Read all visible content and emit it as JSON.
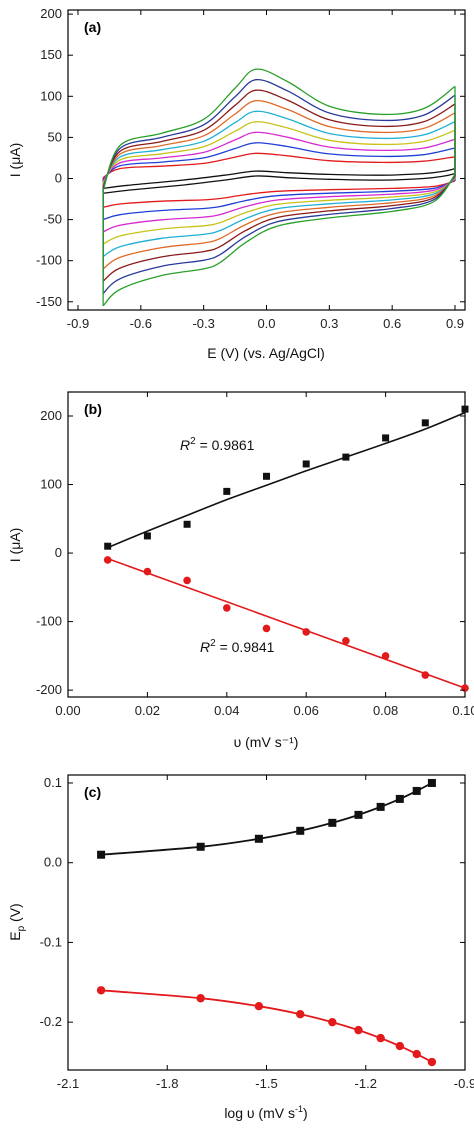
{
  "chart_data": [
    {
      "panel": "(a)",
      "type": "line",
      "xlabel": "E (V) (vs. Ag/AgCl)",
      "ylabel": "I (μA)",
      "xlim": [
        -0.9,
        0.9
      ],
      "ylim": [
        -160,
        205
      ],
      "xticks": [
        -0.9,
        -0.6,
        -0.3,
        0.0,
        0.3,
        0.6,
        0.9
      ],
      "xtick_labels": [
        "-0.9",
        "-0.6",
        "-0.3",
        "0.0",
        "0.3",
        "0.6",
        "0.9"
      ],
      "yticks": [
        -150,
        -100,
        -50,
        0,
        50,
        100,
        150,
        200
      ],
      "ytick_labels": [
        "-150",
        "-100",
        "-50",
        "0",
        "50",
        "100",
        "150",
        "200"
      ],
      "scan_scale": [
        0.1,
        0.2,
        0.3,
        0.4,
        0.5,
        0.6,
        0.7,
        0.8,
        0.9,
        1.0
      ],
      "colors": [
        "#111111",
        "#e31a1c",
        "#1f3fd6",
        "#d62ad0",
        "#c8c21a",
        "#1fb0d4",
        "#e06a28",
        "#8a1a1a",
        "#2a3a9a",
        "#2aa02a"
      ],
      "series": [
        {
          "values": [
            [
              -0.78,
              -12
            ],
            [
              -0.65,
              -8
            ],
            [
              -0.4,
              -2
            ],
            [
              -0.2,
              4
            ],
            [
              -0.05,
              9
            ],
            [
              0.1,
              7
            ],
            [
              0.3,
              5
            ],
            [
              0.55,
              4
            ],
            [
              0.75,
              6
            ],
            [
              0.85,
              9
            ],
            [
              0.9,
              12
            ]
          ]
        },
        {
          "values": [
            [
              -0.78,
              -155
            ],
            [
              -0.7,
              -135
            ],
            [
              -0.5,
              -118
            ],
            [
              -0.3,
              -110
            ],
            [
              -0.22,
              -102
            ],
            [
              -0.1,
              -78
            ],
            [
              0.05,
              -58
            ],
            [
              0.3,
              -48
            ],
            [
              0.6,
              -40
            ],
            [
              0.8,
              -28
            ],
            [
              0.9,
              5
            ]
          ]
        },
        {
          "values": [
            [
              -0.78,
              -15
            ],
            [
              -0.7,
              40
            ],
            [
              -0.5,
              55
            ],
            [
              -0.3,
              72
            ],
            [
              -0.15,
              110
            ],
            [
              -0.05,
              133
            ],
            [
              0.1,
              118
            ],
            [
              0.3,
              88
            ],
            [
              0.55,
              78
            ],
            [
              0.75,
              85
            ],
            [
              0.9,
              112
            ]
          ]
        }
      ]
    },
    {
      "panel": "(b)",
      "type": "scatter",
      "xlabel": "υ (mV s⁻¹)",
      "ylabel": "I (μA)",
      "xlim": [
        0.0,
        0.1
      ],
      "ylim": [
        -210,
        235
      ],
      "xticks": [
        0.0,
        0.02,
        0.04,
        0.06,
        0.08,
        0.1
      ],
      "xtick_labels": [
        "0.00",
        "0.02",
        "0.04",
        "0.06",
        "0.08",
        "0.10"
      ],
      "yticks": [
        -200,
        -100,
        0,
        100,
        200
      ],
      "ytick_labels": [
        "-200",
        "-100",
        "0",
        "100",
        "200"
      ],
      "x": [
        0.01,
        0.02,
        0.03,
        0.04,
        0.05,
        0.06,
        0.07,
        0.08,
        0.09,
        0.1
      ],
      "series": [
        {
          "color": "#111111",
          "marker": "square",
          "values": [
            10,
            25,
            42,
            90,
            112,
            130,
            140,
            168,
            190,
            210
          ],
          "fit": [
            [
              0.01,
              8
            ],
            [
              0.02,
              32
            ],
            [
              0.03,
              55
            ],
            [
              0.04,
              78
            ],
            [
              0.05,
              99
            ],
            [
              0.06,
              120
            ],
            [
              0.07,
              140
            ],
            [
              0.08,
              160
            ],
            [
              0.09,
              181
            ],
            [
              0.1,
              205
            ]
          ],
          "r2_base": "R",
          "r2_exp": "2",
          "r2_value": " = 0.9861"
        },
        {
          "color": "#e31a1c",
          "marker": "circle",
          "values": [
            -10,
            -27,
            -40,
            -80,
            -110,
            -115,
            -128,
            -150,
            -178,
            -197
          ],
          "fit": [
            [
              0.01,
              -8
            ],
            [
              0.1,
              -197
            ]
          ],
          "r2_base": "R",
          "r2_exp": "2",
          "r2_value": " = 0.9841"
        }
      ]
    },
    {
      "panel": "(c)",
      "type": "scatter",
      "xlabel_main": "log υ (mV s",
      "xlabel_sup": "-1",
      "xlabel_end": ")",
      "ylabel_main": "E",
      "ylabel_sub": "p",
      "ylabel_end": " (V)",
      "xlim": [
        -2.1,
        -0.9
      ],
      "ylim": [
        -0.26,
        0.11
      ],
      "xticks": [
        -2.1,
        -1.8,
        -1.5,
        -1.2,
        -0.9
      ],
      "xtick_labels": [
        "-2.1",
        "-1.8",
        "-1.5",
        "-1.2",
        "-0.9"
      ],
      "yticks": [
        -0.2,
        -0.1,
        0.0,
        0.1
      ],
      "ytick_labels": [
        "-0.2",
        "-0.1",
        "0.0",
        "0.1"
      ],
      "x": [
        -2.0,
        -1.699,
        -1.523,
        -1.398,
        -1.301,
        -1.222,
        -1.155,
        -1.097,
        -1.046,
        -1.0
      ],
      "series": [
        {
          "color": "#111111",
          "marker": "square",
          "values": [
            0.01,
            0.02,
            0.03,
            0.04,
            0.05,
            0.06,
            0.07,
            0.08,
            0.09,
            0.1
          ]
        },
        {
          "color": "#e31a1c",
          "marker": "circle",
          "values": [
            -0.16,
            -0.17,
            -0.18,
            -0.19,
            -0.2,
            -0.21,
            -0.22,
            -0.23,
            -0.24,
            -0.25
          ]
        }
      ]
    }
  ]
}
